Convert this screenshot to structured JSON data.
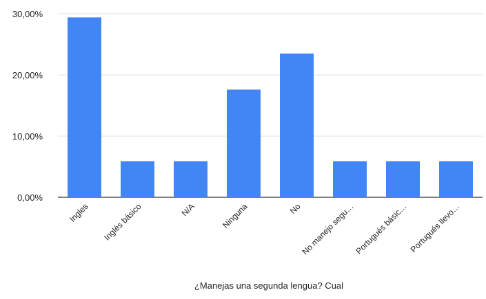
{
  "chart_data": {
    "type": "bar",
    "title": "",
    "xlabel": "¿Manejas una segunda lengua? Cual",
    "ylabel": "",
    "categories": [
      "Ingles",
      "Inglés básico",
      "N/A",
      "Ninguna",
      "No",
      "No manejo segu…",
      "Portugués básic…",
      "Portugués llevo…"
    ],
    "values": [
      29.4,
      5.9,
      5.9,
      17.6,
      23.5,
      5.9,
      5.9,
      5.9
    ],
    "ylim": [
      0,
      30
    ],
    "yticks": [
      0,
      10,
      20,
      30
    ],
    "ytick_labels": [
      "0,00%",
      "10,00%",
      "20,00%",
      "30,00%"
    ],
    "grid": true,
    "legend": "none",
    "colors": {
      "bar": "#4285F4",
      "grid": "#e0e0e0",
      "baseline": "#333333"
    }
  }
}
